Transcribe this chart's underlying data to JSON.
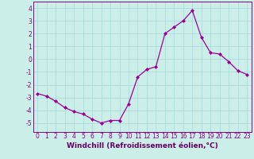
{
  "x": [
    0,
    1,
    2,
    3,
    4,
    5,
    6,
    7,
    8,
    9,
    10,
    11,
    12,
    13,
    14,
    15,
    16,
    17,
    18,
    19,
    20,
    21,
    22,
    23
  ],
  "y": [
    -2.7,
    -2.9,
    -3.3,
    -3.8,
    -4.1,
    -4.3,
    -4.7,
    -5.0,
    -4.8,
    -4.8,
    -3.5,
    -1.4,
    -0.8,
    -0.6,
    2.0,
    2.5,
    3.0,
    3.8,
    1.7,
    0.5,
    0.4,
    -0.2,
    -0.9,
    -1.2
  ],
  "line_color": "#990099",
  "marker": "D",
  "marker_size": 2,
  "bg_color": "#cceee8",
  "grid_color": "#aadddd",
  "xlabel": "Windchill (Refroidissement éolien,°C)",
  "xlim": [
    -0.5,
    23.5
  ],
  "ylim": [
    -5.7,
    4.5
  ],
  "yticks": [
    -5,
    -4,
    -3,
    -2,
    -1,
    0,
    1,
    2,
    3,
    4
  ],
  "xticks": [
    0,
    1,
    2,
    3,
    4,
    5,
    6,
    7,
    8,
    9,
    10,
    11,
    12,
    13,
    14,
    15,
    16,
    17,
    18,
    19,
    20,
    21,
    22,
    23
  ],
  "tick_color": "#880088",
  "label_color": "#660066",
  "tick_fontsize": 5.5,
  "xlabel_fontsize": 6.5
}
